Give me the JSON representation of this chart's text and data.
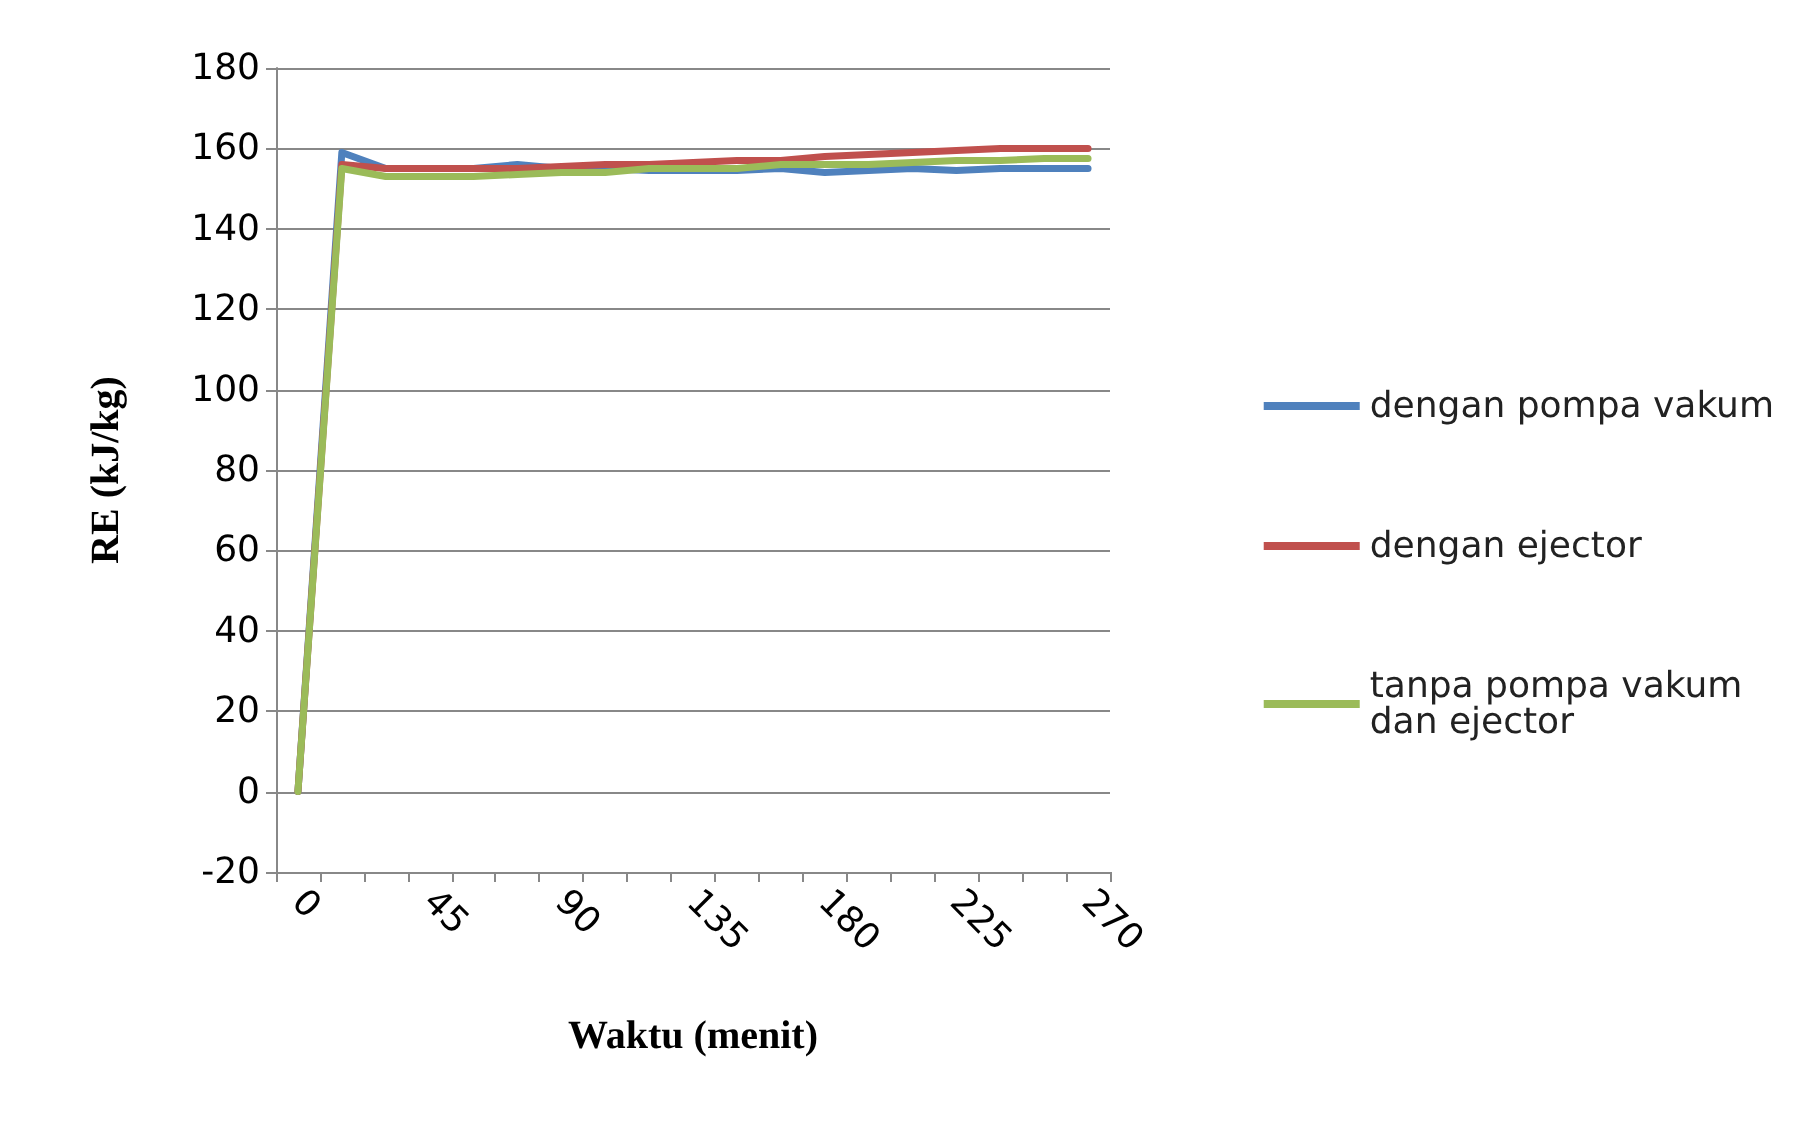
{
  "chart_data": {
    "type": "line",
    "xlabel": "Waktu (menit)",
    "ylabel": "RE (kJ/kg)",
    "categories": [
      "0",
      null,
      null,
      "45",
      null,
      null,
      "90",
      null,
      null,
      "135",
      null,
      null,
      "180",
      null,
      null,
      "225",
      null,
      null,
      "270"
    ],
    "series": [
      {
        "name": "dengan pompa vakum",
        "color": "#4f81bd",
        "values": [
          0,
          159,
          155,
          155,
          155,
          156,
          155,
          155,
          154.5,
          154.5,
          154.5,
          155,
          154,
          154.5,
          155,
          154.5,
          155,
          155,
          155
        ]
      },
      {
        "name": "dengan ejector",
        "color": "#c0504d",
        "values": [
          0,
          156,
          155,
          155,
          155,
          155,
          155.5,
          156,
          156,
          156.5,
          157,
          157,
          158,
          158.5,
          159,
          159.5,
          160,
          160,
          160
        ]
      },
      {
        "name": "tanpa pompa vakum dan ejector",
        "color": "#9bbb59",
        "values": [
          0,
          155,
          153,
          153,
          153,
          153.5,
          154,
          154,
          155,
          155,
          155,
          156,
          156,
          156,
          156.5,
          157,
          157,
          157.5,
          157.5
        ]
      }
    ],
    "ylim": [
      -20,
      180
    ],
    "yticks": [
      -20,
      0,
      20,
      40,
      60,
      80,
      100,
      120,
      140,
      160,
      180
    ],
    "grid": "y",
    "legend": "right",
    "marker": "none",
    "line_style": "solid"
  }
}
